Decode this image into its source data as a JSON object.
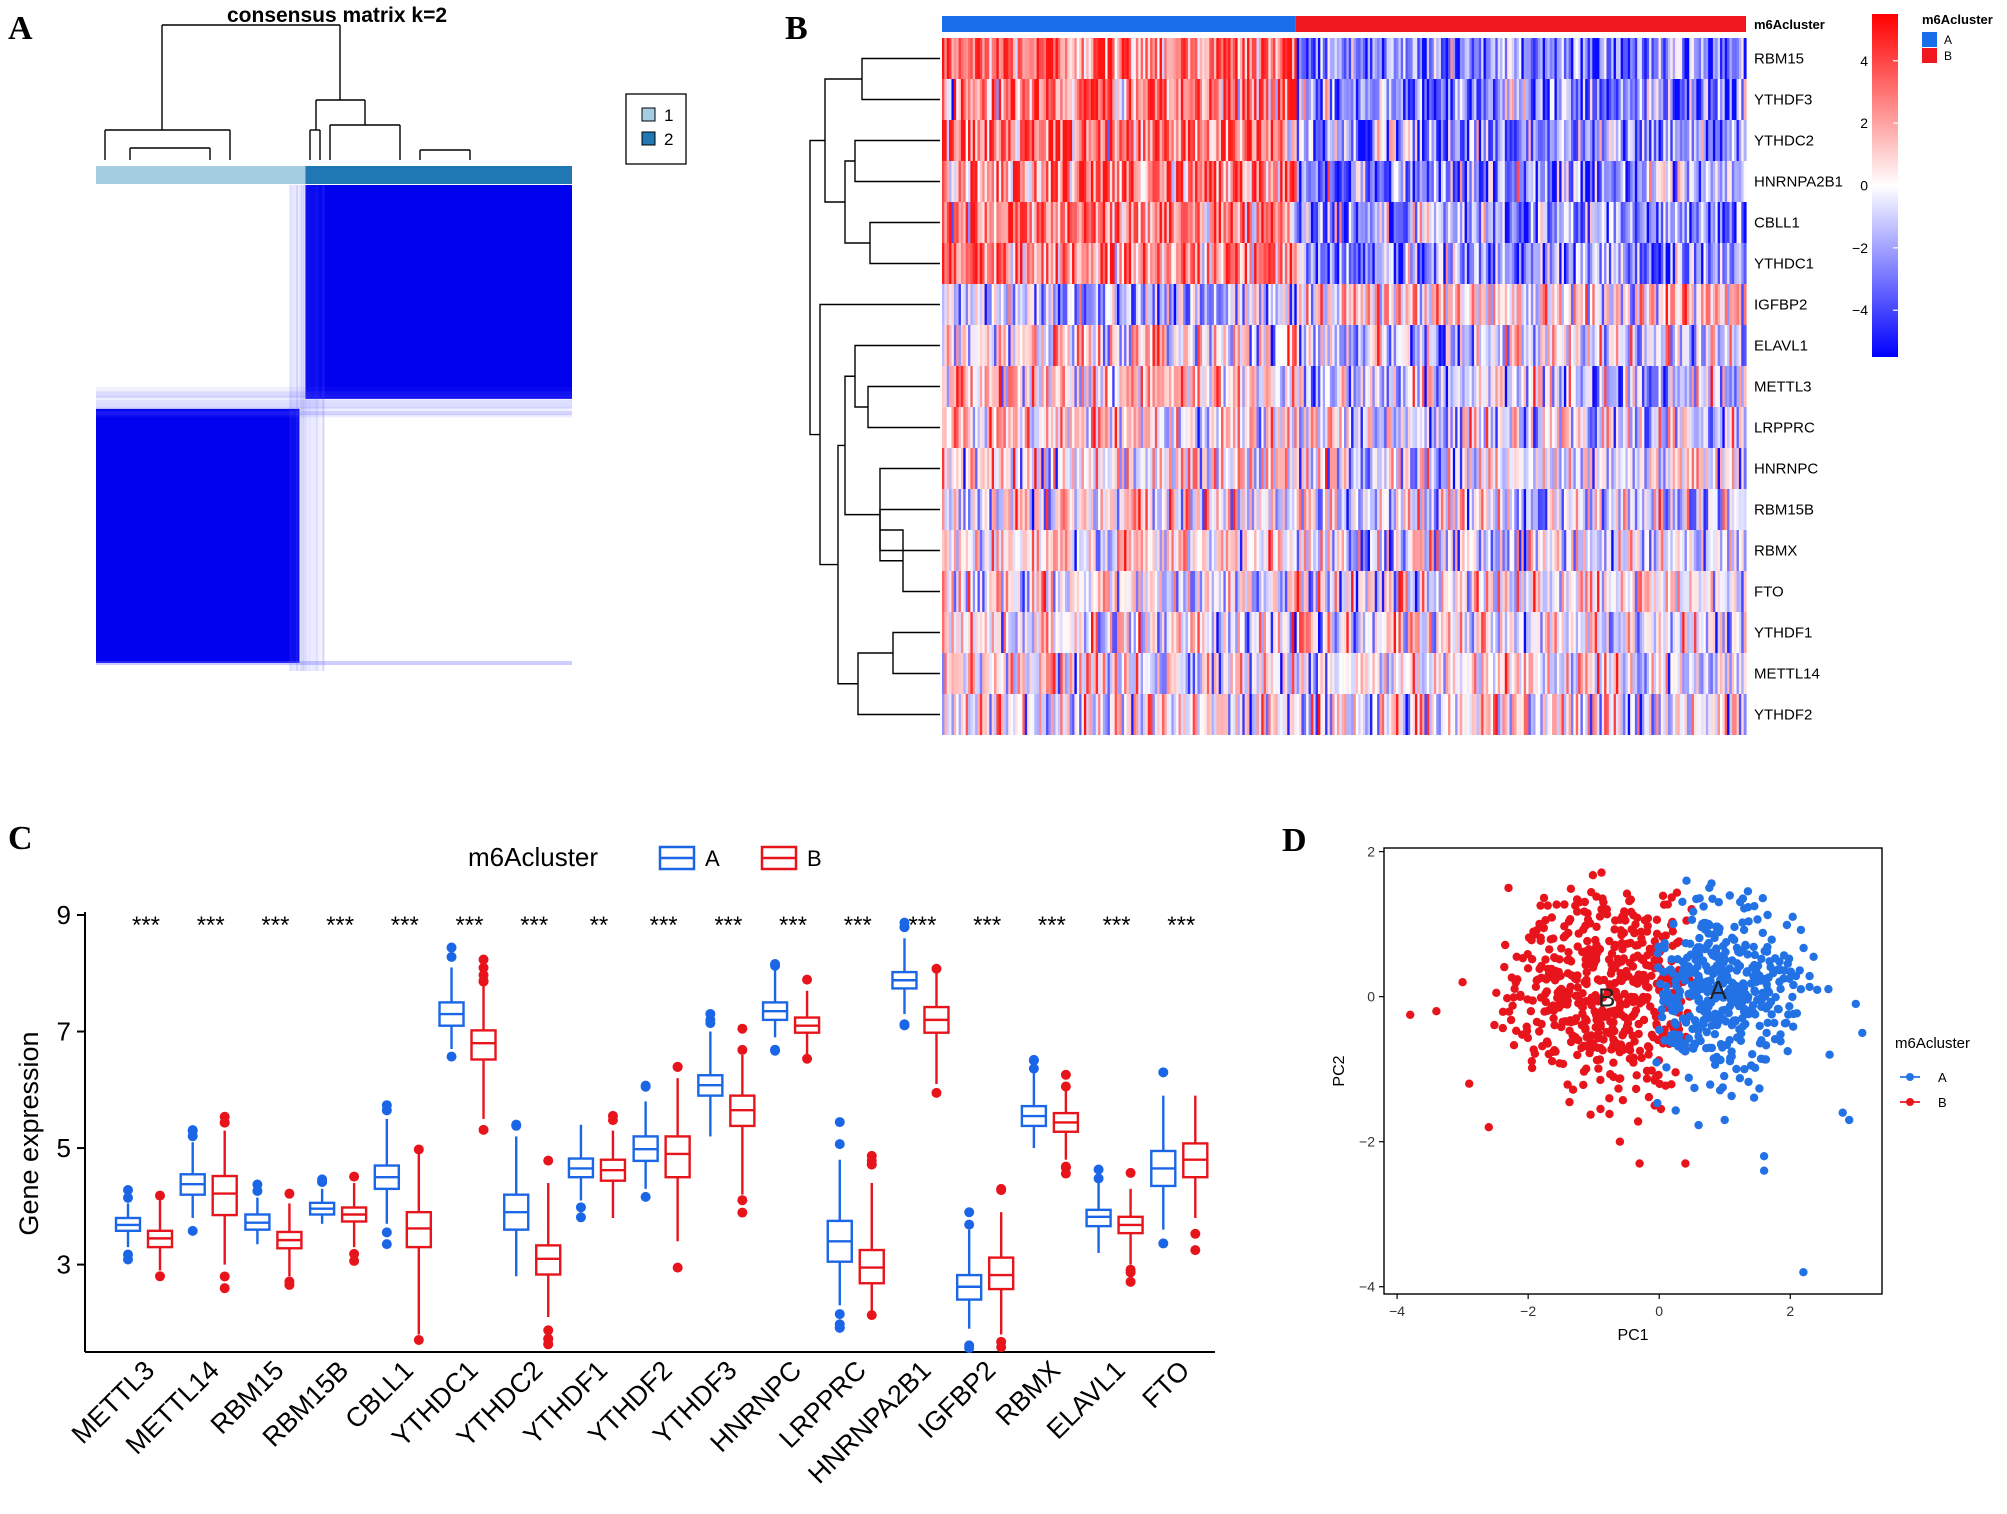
{
  "figure": {
    "panel_labels": {
      "a": "A",
      "b": "B",
      "c": "C",
      "d": "D"
    }
  },
  "chart_data": [
    {
      "panel": "A",
      "type": "heatmap",
      "title": "consensus matrix k=2",
      "legend": [
        {
          "label": "1",
          "color": "#a6cee3"
        },
        {
          "label": "2",
          "color": "#1f78b4"
        }
      ],
      "cluster_fractions": [
        0.44,
        0.56
      ],
      "colors": {
        "high": "#0000ee",
        "low": "#ffffff"
      }
    },
    {
      "panel": "B",
      "type": "heatmap",
      "annotation_title": "m6Acluster",
      "annotation_legend": [
        {
          "label": "A",
          "color": "#1a6eea"
        },
        {
          "label": "B",
          "color": "#f0181e"
        }
      ],
      "cluster_fractions": [
        0.44,
        0.56
      ],
      "rows": [
        "RBM15",
        "YTHDF3",
        "YTHDC2",
        "HNRNPA2B1",
        "CBLL1",
        "YTHDC1",
        "IGFBP2",
        "ELAVL1",
        "METTL3",
        "LRPPRC",
        "HNRNPC",
        "RBM15B",
        "RBMX",
        "FTO",
        "YTHDF1",
        "METTL14",
        "YTHDF2"
      ],
      "row_bias": [
        1.1,
        1.0,
        1.0,
        1.0,
        1.0,
        1.0,
        -0.5,
        0.25,
        0.35,
        0.25,
        0.15,
        0.15,
        0.1,
        0.0,
        0.05,
        0.05,
        0.0
      ],
      "colorbar": {
        "min": -5.5,
        "max": 5.5,
        "ticks": [
          4,
          2,
          0,
          -2,
          -4
        ],
        "tick_labels": [
          "4",
          "2",
          "0",
          "−2",
          "−4"
        ]
      }
    },
    {
      "panel": "C",
      "type": "box",
      "legend_title": "m6Acluster",
      "series": [
        {
          "name": "A",
          "color": "#1a66e6"
        },
        {
          "name": "B",
          "color": "#e8141c"
        }
      ],
      "ylabel": "Gene expression",
      "ylim": [
        1.5,
        9
      ],
      "yticks": [
        3,
        5,
        7,
        9
      ],
      "categories": [
        "METTL3",
        "METTL14",
        "RBM15",
        "RBM15B",
        "CBLL1",
        "YTHDC1",
        "YTHDC2",
        "YTHDF1",
        "YTHDF2",
        "YTHDF3",
        "HNRNPC",
        "LRPPRC",
        "HNRNPA2B1",
        "IGFBP2",
        "RBMX",
        "ELAVL1",
        "FTO"
      ],
      "significance": [
        "***",
        "***",
        "***",
        "***",
        "***",
        "***",
        "***",
        "**",
        "***",
        "***",
        "***",
        "***",
        "***",
        "***",
        "***",
        "***",
        "***"
      ],
      "boxes": {
        "A": [
          [
            3.3,
            3.58,
            3.68,
            3.8,
            4.05
          ],
          [
            3.8,
            4.2,
            4.38,
            4.55,
            5.1
          ],
          [
            3.35,
            3.6,
            3.72,
            3.86,
            4.15
          ],
          [
            3.7,
            3.86,
            3.96,
            4.06,
            4.3
          ],
          [
            3.7,
            4.3,
            4.5,
            4.7,
            5.5
          ],
          [
            6.7,
            7.1,
            7.3,
            7.5,
            8.1
          ],
          [
            2.8,
            3.6,
            3.9,
            4.2,
            5.2
          ],
          [
            4.1,
            4.5,
            4.65,
            4.82,
            5.4
          ],
          [
            4.3,
            4.78,
            4.98,
            5.2,
            5.8
          ],
          [
            5.2,
            5.9,
            6.08,
            6.25,
            7.0
          ],
          [
            6.9,
            7.2,
            7.35,
            7.5,
            8.05
          ],
          [
            2.3,
            3.05,
            3.4,
            3.75,
            4.8
          ],
          [
            7.3,
            7.74,
            7.88,
            8.02,
            8.6
          ],
          [
            1.9,
            2.4,
            2.62,
            2.82,
            3.6
          ],
          [
            5.0,
            5.38,
            5.55,
            5.72,
            6.3
          ],
          [
            3.2,
            3.66,
            3.82,
            3.94,
            4.4
          ],
          [
            3.6,
            4.35,
            4.65,
            4.95,
            5.9
          ]
        ],
        "B": [
          [
            2.9,
            3.3,
            3.45,
            3.58,
            4.1
          ],
          [
            3.0,
            3.85,
            4.22,
            4.52,
            5.3
          ],
          [
            2.8,
            3.28,
            3.42,
            3.56,
            4.05
          ],
          [
            3.3,
            3.74,
            3.86,
            3.98,
            4.4
          ],
          [
            1.8,
            3.3,
            3.62,
            3.9,
            4.9
          ],
          [
            5.5,
            6.52,
            6.8,
            7.02,
            7.8
          ],
          [
            2.1,
            2.83,
            3.1,
            3.33,
            4.4
          ],
          [
            3.8,
            4.44,
            4.62,
            4.8,
            5.3
          ],
          [
            3.4,
            4.5,
            4.9,
            5.2,
            6.2
          ],
          [
            4.2,
            5.38,
            5.65,
            5.9,
            6.6
          ],
          [
            6.6,
            6.98,
            7.1,
            7.24,
            7.7
          ],
          [
            2.2,
            2.68,
            2.95,
            3.25,
            4.4
          ],
          [
            6.1,
            6.98,
            7.2,
            7.42,
            8.0
          ],
          [
            1.8,
            2.58,
            2.82,
            3.12,
            3.9
          ],
          [
            4.8,
            5.28,
            5.44,
            5.6,
            6.0
          ],
          [
            3.0,
            3.54,
            3.68,
            3.82,
            4.3
          ],
          [
            3.8,
            4.5,
            4.8,
            5.08,
            5.9
          ]
        ]
      }
    },
    {
      "panel": "D",
      "type": "scatter",
      "xlabel": "PC1",
      "ylabel": "PC2",
      "xlim": [
        -4.2,
        3.4
      ],
      "ylim": [
        -4.1,
        2.05
      ],
      "xticks": [
        -4,
        -2,
        0,
        2
      ],
      "yticks": [
        2,
        0,
        -2,
        -4
      ],
      "tick_labels_x": [
        "−4",
        "−2",
        "0",
        "2"
      ],
      "tick_labels_y": [
        "2",
        "0",
        "−2",
        "−4"
      ],
      "legend_title": "m6Acluster",
      "series": [
        {
          "name": "A",
          "color": "#2272e6",
          "center": [
            0.9,
            0.1
          ],
          "spread": [
            0.75,
            0.6
          ],
          "n": 420
        },
        {
          "name": "B",
          "color": "#e8141c",
          "center": [
            -0.8,
            0.05
          ],
          "spread": [
            1.0,
            0.72
          ],
          "n": 520
        }
      ],
      "annotations": [
        {
          "label": "A",
          "x": 0.9,
          "y": 0.05
        },
        {
          "label": "B",
          "x": -0.8,
          "y": -0.05
        }
      ],
      "outliers": {
        "A": [
          [
            2.2,
            -3.8
          ],
          [
            1.6,
            -2.2
          ],
          [
            1.6,
            -2.4
          ],
          [
            2.9,
            -1.7
          ],
          [
            2.8,
            -1.6
          ],
          [
            3.0,
            -0.1
          ],
          [
            3.1,
            -0.5
          ],
          [
            1.0,
            -1.7
          ],
          [
            2.6,
            -0.8
          ],
          [
            1.3,
            -1.0
          ]
        ],
        "B": [
          [
            -3.8,
            -0.25
          ],
          [
            -3.4,
            -0.2
          ],
          [
            -2.6,
            -1.8
          ],
          [
            -2.9,
            -1.2
          ],
          [
            0.4,
            -2.3
          ],
          [
            -0.3,
            -2.3
          ],
          [
            -2.3,
            1.5
          ],
          [
            -0.6,
            -2.0
          ],
          [
            -3.0,
            0.2
          ]
        ]
      }
    }
  ]
}
